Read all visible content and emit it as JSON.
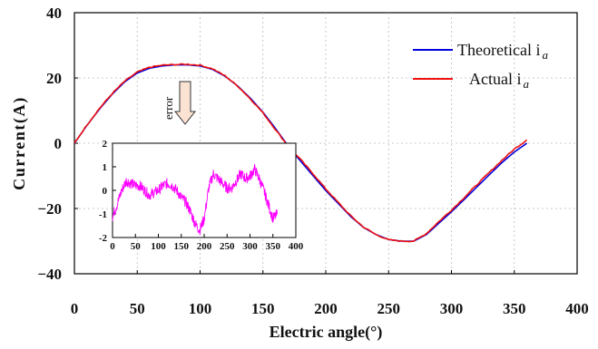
{
  "chart_data": [
    {
      "type": "line",
      "xlabel": "Electric angle(°)",
      "ylabel": "Current(A)",
      "xlim": [
        0,
        400
      ],
      "ylim": [
        -40,
        40
      ],
      "xticks": [
        "0",
        "50",
        "100",
        "150",
        "200",
        "250",
        "300",
        "350",
        "400"
      ],
      "yticks": [
        "40",
        "20",
        "0",
        "−20",
        "−40"
      ],
      "grid": true,
      "legend_position": "top-right",
      "series": [
        {
          "name": "Theoretical i",
          "name_subscript": "a",
          "color": "#0000dd",
          "x": [
            0,
            10,
            20,
            30,
            40,
            50,
            60,
            70,
            80,
            90,
            100,
            110,
            120,
            130,
            140,
            150,
            160,
            170,
            180,
            190,
            200,
            210,
            220,
            230,
            240,
            250,
            260,
            270,
            280,
            290,
            300,
            310,
            320,
            330,
            340,
            350,
            360
          ],
          "y": [
            0.0,
            5.5,
            10.5,
            15.0,
            18.8,
            21.5,
            23.0,
            23.7,
            24.0,
            24.0,
            23.7,
            22.6,
            20.5,
            17.5,
            13.8,
            9.5,
            4.5,
            -0.8,
            -5.5,
            -10.0,
            -14.5,
            -18.5,
            -22.5,
            -25.8,
            -28.0,
            -29.5,
            -30.0,
            -30.0,
            -28.0,
            -24.5,
            -21.0,
            -17.3,
            -13.5,
            -9.7,
            -6.0,
            -2.7,
            0.0
          ]
        },
        {
          "name": "Actual i",
          "name_subscript": "a",
          "color": "#ee1111",
          "x": [
            0,
            10,
            20,
            30,
            40,
            50,
            60,
            70,
            80,
            90,
            100,
            110,
            120,
            130,
            140,
            150,
            160,
            170,
            180,
            190,
            200,
            210,
            220,
            230,
            240,
            250,
            260,
            270,
            280,
            290,
            300,
            310,
            320,
            330,
            340,
            350,
            360
          ],
          "y": [
            0.0,
            5.6,
            10.7,
            15.2,
            19.0,
            21.8,
            23.3,
            23.9,
            24.1,
            24.2,
            23.9,
            22.8,
            20.6,
            17.5,
            13.6,
            9.3,
            4.2,
            -0.9,
            -5.0,
            -9.4,
            -14.0,
            -18.2,
            -22.3,
            -25.7,
            -28.0,
            -29.6,
            -30.0,
            -30.0,
            -27.7,
            -24.0,
            -20.5,
            -16.7,
            -12.8,
            -9.0,
            -5.3,
            -1.8,
            1.0
          ]
        }
      ],
      "annotations": [
        "error"
      ]
    },
    {
      "type": "line",
      "inset": true,
      "xlim": [
        0,
        400
      ],
      "ylim": [
        -2,
        2
      ],
      "xticks": [
        "0",
        "50",
        "100",
        "150",
        "200",
        "250",
        "300",
        "350",
        "400"
      ],
      "yticks": [
        "2",
        "1",
        "0",
        "-1",
        "-2"
      ],
      "series": [
        {
          "color": "#ff00ff",
          "x": [
            0,
            10,
            20,
            30,
            40,
            50,
            60,
            70,
            80,
            90,
            100,
            110,
            120,
            130,
            140,
            150,
            160,
            170,
            180,
            190,
            200,
            210,
            220,
            230,
            240,
            250,
            260,
            270,
            280,
            290,
            300,
            310,
            320,
            330,
            340,
            350,
            360
          ],
          "y": [
            -1.1,
            -0.6,
            0.0,
            0.4,
            0.3,
            0.2,
            0.2,
            0.0,
            -0.2,
            -0.1,
            0.0,
            0.2,
            0.3,
            0.2,
            0.0,
            -0.3,
            -0.5,
            -0.9,
            -1.4,
            -1.7,
            -1.2,
            0.1,
            0.7,
            0.5,
            0.3,
            0.1,
            0.1,
            0.4,
            0.7,
            0.5,
            0.6,
            0.9,
            0.5,
            0.0,
            -0.6,
            -1.2,
            -1.0
          ]
        }
      ]
    }
  ],
  "legend": {
    "theoretical_label": "Theoretical i",
    "theoretical_sub": "a",
    "actual_label": "Actual i",
    "actual_sub": "a"
  },
  "annotation": {
    "text": "error",
    "arrow_color": "#fbe3d4"
  }
}
